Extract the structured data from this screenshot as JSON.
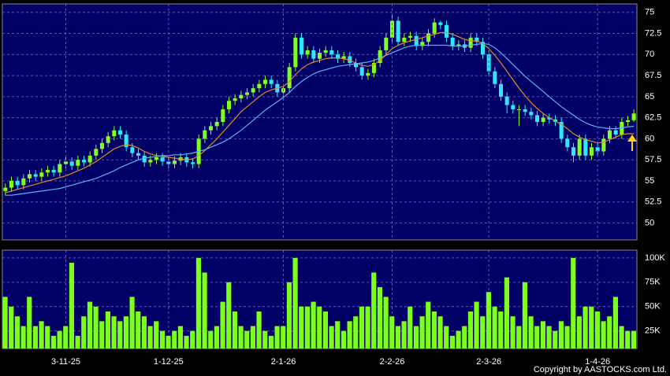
{
  "chart_data": [
    {
      "type": "candlestick",
      "up_color": "#80ff20",
      "down_color": "#2ee8ff",
      "ylim": [
        48,
        76
      ],
      "yticks": [
        50,
        52.5,
        55,
        57.5,
        60,
        62.5,
        65,
        67.5,
        70,
        72.5,
        75
      ],
      "grid": true,
      "open": [
        53.8,
        54.2,
        55.0,
        54.5,
        55.3,
        55.8,
        55.5,
        56.0,
        56.3,
        56.0,
        57.0,
        57.3,
        56.8,
        57.5,
        57.2,
        58.0,
        58.8,
        59.5,
        60.3,
        61.0,
        60.5,
        59.0,
        58.3,
        58.0,
        57.2,
        57.5,
        57.8,
        57.3,
        57.0,
        57.4,
        57.8,
        57.2,
        57.0,
        60.0,
        61.0,
        61.5,
        62.0,
        63.5,
        64.5,
        64.8,
        65.2,
        65.5,
        66.0,
        66.5,
        67.0,
        66.5,
        65.5,
        66.0,
        68.5,
        72.0,
        70.0,
        70.5,
        69.5,
        70.2,
        70.5,
        70.0,
        69.5,
        69.8,
        69.0,
        68.5,
        67.5,
        67.8,
        69.0,
        70.5,
        72.0,
        74.0,
        71.5,
        72.0,
        72.2,
        71.0,
        71.5,
        72.5,
        73.8,
        73.5,
        72.0,
        71.0,
        71.2,
        70.8,
        72.0,
        71.5,
        70.0,
        68.0,
        66.5,
        65.0,
        64.0,
        63.5,
        63.5,
        63.2,
        62.8,
        62.0,
        62.5,
        62.3,
        62.0,
        60.0,
        59.0,
        58.0,
        60.0,
        58.0,
        59.0,
        58.5,
        60.0,
        61.0,
        60.5,
        62.0,
        62.2
      ],
      "high": [
        54.7,
        55.5,
        55.5,
        55.8,
        56.3,
        56.3,
        56.5,
        56.8,
        56.8,
        57.5,
        57.8,
        57.8,
        58.0,
        58.0,
        58.5,
        59.3,
        60.0,
        60.8,
        61.5,
        61.5,
        61.0,
        59.5,
        58.8,
        58.5,
        58.0,
        58.3,
        58.3,
        57.8,
        57.9,
        58.3,
        58.3,
        57.7,
        60.5,
        61.5,
        62.0,
        62.5,
        64.0,
        65.0,
        65.3,
        65.7,
        66.0,
        66.5,
        67.0,
        67.5,
        67.5,
        67.0,
        66.5,
        69.0,
        72.5,
        72.5,
        71.0,
        71.0,
        70.7,
        71.0,
        71.0,
        70.5,
        70.3,
        70.3,
        69.5,
        69.0,
        68.3,
        69.5,
        71.0,
        72.5,
        74.8,
        74.5,
        72.5,
        72.7,
        72.7,
        72.0,
        73.0,
        74.3,
        74.0,
        74.0,
        72.5,
        71.7,
        71.7,
        72.5,
        72.5,
        72.0,
        70.5,
        68.5,
        67.0,
        65.5,
        64.5,
        64.0,
        64.0,
        63.7,
        63.3,
        63.0,
        63.0,
        62.8,
        62.5,
        60.5,
        59.5,
        60.5,
        60.5,
        59.5,
        59.5,
        60.5,
        61.5,
        61.5,
        62.5,
        62.7,
        63.5
      ],
      "low": [
        53.3,
        53.7,
        54.0,
        54.0,
        54.8,
        55.0,
        55.0,
        55.5,
        55.5,
        55.5,
        56.5,
        56.3,
        56.3,
        56.7,
        56.7,
        57.5,
        58.3,
        59.0,
        59.8,
        60.0,
        58.5,
        57.8,
        57.5,
        56.7,
        56.7,
        57.0,
        56.8,
        56.5,
        56.5,
        56.9,
        56.7,
        56.5,
        56.5,
        59.5,
        60.5,
        61.0,
        61.5,
        63.0,
        64.0,
        64.3,
        64.7,
        65.0,
        65.5,
        66.0,
        66.0,
        65.0,
        65.0,
        65.5,
        68.0,
        69.5,
        69.5,
        69.0,
        69.0,
        69.7,
        69.5,
        69.0,
        69.0,
        68.5,
        68.0,
        67.0,
        67.0,
        67.3,
        68.5,
        70.0,
        71.5,
        71.0,
        71.0,
        71.5,
        70.5,
        70.5,
        71.0,
        72.0,
        73.0,
        71.5,
        70.5,
        70.5,
        70.3,
        70.3,
        71.0,
        69.5,
        67.5,
        66.0,
        64.5,
        63.0,
        63.0,
        61.5,
        62.7,
        62.3,
        61.5,
        61.5,
        61.8,
        61.5,
        59.5,
        58.5,
        57.2,
        57.5,
        57.5,
        57.5,
        58.0,
        58.0,
        59.5,
        60.0,
        60.0,
        61.5,
        62.0
      ],
      "close": [
        54.2,
        55.0,
        54.5,
        55.3,
        55.8,
        55.5,
        56.0,
        56.3,
        56.0,
        57.0,
        57.3,
        56.8,
        57.5,
        57.2,
        58.0,
        58.8,
        59.5,
        60.3,
        61.0,
        60.5,
        59.0,
        58.3,
        58.0,
        57.2,
        57.5,
        57.8,
        57.3,
        57.0,
        57.4,
        57.8,
        57.2,
        57.0,
        60.0,
        61.0,
        61.5,
        62.0,
        63.5,
        64.5,
        64.8,
        65.2,
        65.5,
        66.0,
        66.5,
        67.0,
        66.5,
        65.5,
        66.0,
        68.5,
        72.0,
        70.0,
        70.5,
        69.5,
        70.2,
        70.5,
        70.0,
        69.5,
        69.8,
        69.0,
        68.5,
        67.5,
        67.8,
        69.0,
        70.5,
        72.0,
        74.0,
        71.5,
        72.0,
        72.2,
        71.0,
        71.5,
        72.5,
        73.8,
        73.5,
        72.0,
        71.0,
        71.2,
        70.8,
        72.0,
        71.5,
        70.0,
        68.0,
        66.5,
        65.0,
        64.0,
        63.5,
        63.5,
        63.2,
        62.8,
        62.0,
        62.5,
        62.3,
        62.0,
        60.0,
        59.0,
        58.0,
        60.0,
        58.0,
        59.0,
        58.5,
        60.0,
        61.0,
        60.5,
        62.0,
        62.2,
        63.0
      ],
      "series": [
        {
          "color": "#e8862a",
          "values": [
            53.6,
            53.8,
            54.0,
            54.2,
            54.4,
            54.6,
            54.8,
            55.0,
            55.2,
            55.4,
            55.6,
            55.9,
            56.2,
            56.5,
            56.9,
            57.3,
            57.8,
            58.3,
            58.8,
            59.1,
            59.3,
            59.2,
            58.9,
            58.5,
            58.2,
            58.0,
            57.9,
            57.8,
            57.7,
            57.6,
            57.5,
            57.6,
            58.0,
            58.6,
            59.3,
            60.0,
            60.8,
            61.6,
            62.4,
            63.2,
            63.8,
            64.4,
            65.0,
            65.5,
            65.8,
            66.0,
            66.2,
            66.8,
            67.6,
            68.3,
            68.8,
            69.1,
            69.3,
            69.5,
            69.6,
            69.6,
            69.5,
            69.3,
            69.0,
            68.7,
            68.6,
            68.8,
            69.3,
            70.0,
            70.7,
            71.1,
            71.4,
            71.6,
            71.8,
            72.0,
            72.2,
            72.4,
            72.6,
            72.6,
            72.4,
            72.1,
            71.8,
            71.6,
            71.6,
            71.3,
            70.7,
            69.9,
            69.0,
            68.0,
            67.0,
            66.0,
            65.1,
            64.3,
            63.6,
            63.0,
            62.5,
            62.1,
            61.7,
            61.2,
            60.6,
            60.2,
            59.9,
            59.7,
            59.5,
            59.6,
            59.9,
            60.2,
            60.5,
            60.6,
            60.6
          ]
        },
        {
          "color": "#5ab4f0",
          "values": [
            53.3,
            53.3,
            53.4,
            53.5,
            53.6,
            53.7,
            53.8,
            53.9,
            54.0,
            54.1,
            54.3,
            54.5,
            54.7,
            54.9,
            55.1,
            55.3,
            55.6,
            55.9,
            56.2,
            56.6,
            56.9,
            57.2,
            57.5,
            57.7,
            57.8,
            57.9,
            58.0,
            58.0,
            58.1,
            58.1,
            58.2,
            58.3,
            58.5,
            58.7,
            59.0,
            59.3,
            59.6,
            60.0,
            60.5,
            61.0,
            61.6,
            62.2,
            62.8,
            63.4,
            63.9,
            64.4,
            64.9,
            65.5,
            66.2,
            66.8,
            67.3,
            67.7,
            68.0,
            68.2,
            68.4,
            68.6,
            68.7,
            68.8,
            68.9,
            69.0,
            69.1,
            69.3,
            69.6,
            69.9,
            70.2,
            70.5,
            70.8,
            71.0,
            71.1,
            71.1,
            71.1,
            71.1,
            71.1,
            71.1,
            71.0,
            71.0,
            71.0,
            71.1,
            71.2,
            71.3,
            71.2,
            70.8,
            70.2,
            69.5,
            68.8,
            68.1,
            67.4,
            66.8,
            66.2,
            65.6,
            65.0,
            64.4,
            63.8,
            63.3,
            62.8,
            62.3,
            61.9,
            61.6,
            61.4,
            61.3,
            61.2,
            61.2,
            61.3,
            61.4,
            61.5
          ]
        }
      ]
    },
    {
      "type": "bar",
      "color": "#7cff1a",
      "ylim": [
        7000,
        108000
      ],
      "yticks": [
        {
          "value": 25000,
          "label": "25K"
        },
        {
          "value": 50000,
          "label": "50K"
        },
        {
          "value": 75000,
          "label": "75K"
        },
        {
          "value": 100000,
          "label": "100K"
        }
      ],
      "grid": true,
      "categories": [
        null,
        null,
        null,
        null,
        null,
        null,
        null,
        null,
        null,
        null,
        "3-11-25",
        null,
        null,
        null,
        null,
        null,
        null,
        null,
        null,
        null,
        null,
        null,
        null,
        null,
        null,
        null,
        null,
        "1-12-25",
        null,
        null,
        null,
        null,
        null,
        null,
        null,
        null,
        null,
        null,
        null,
        null,
        null,
        null,
        null,
        null,
        null,
        null,
        "2-1-26",
        null,
        null,
        null,
        null,
        null,
        null,
        null,
        null,
        null,
        null,
        null,
        null,
        null,
        null,
        null,
        null,
        null,
        "2-2-26",
        null,
        null,
        null,
        null,
        null,
        null,
        null,
        null,
        null,
        null,
        null,
        null,
        null,
        null,
        null,
        "2-3-26",
        null,
        null,
        null,
        null,
        null,
        null,
        null,
        null,
        null,
        null,
        null,
        null,
        null,
        null,
        null,
        null,
        null,
        "1-4-26",
        null,
        null,
        null,
        null,
        null,
        null
      ],
      "values": [
        60000,
        50000,
        40000,
        30000,
        60000,
        30000,
        35000,
        30000,
        20000,
        25000,
        30000,
        95000,
        20000,
        40000,
        55000,
        50000,
        35000,
        45000,
        40000,
        35000,
        40000,
        60000,
        45000,
        40000,
        30000,
        35000,
        25000,
        20000,
        25000,
        30000,
        20000,
        25000,
        100000,
        85000,
        25000,
        30000,
        55000,
        75000,
        45000,
        30000,
        25000,
        30000,
        45000,
        25000,
        20000,
        30000,
        30000,
        75000,
        100000,
        50000,
        50000,
        55000,
        50000,
        45000,
        30000,
        35000,
        25000,
        35000,
        40000,
        50000,
        50000,
        85000,
        70000,
        60000,
        40000,
        30000,
        35000,
        50000,
        30000,
        40000,
        55000,
        45000,
        40000,
        30000,
        20000,
        25000,
        30000,
        45000,
        55000,
        40000,
        65000,
        50000,
        45000,
        80000,
        40000,
        30000,
        75000,
        40000,
        30000,
        35000,
        30000,
        25000,
        35000,
        30000,
        100000,
        40000,
        50000,
        50000,
        45000,
        35000,
        40000,
        60000,
        30000,
        25000,
        25000
      ]
    }
  ],
  "copyright": "Copyright by AASTOCKS.com Ltd."
}
